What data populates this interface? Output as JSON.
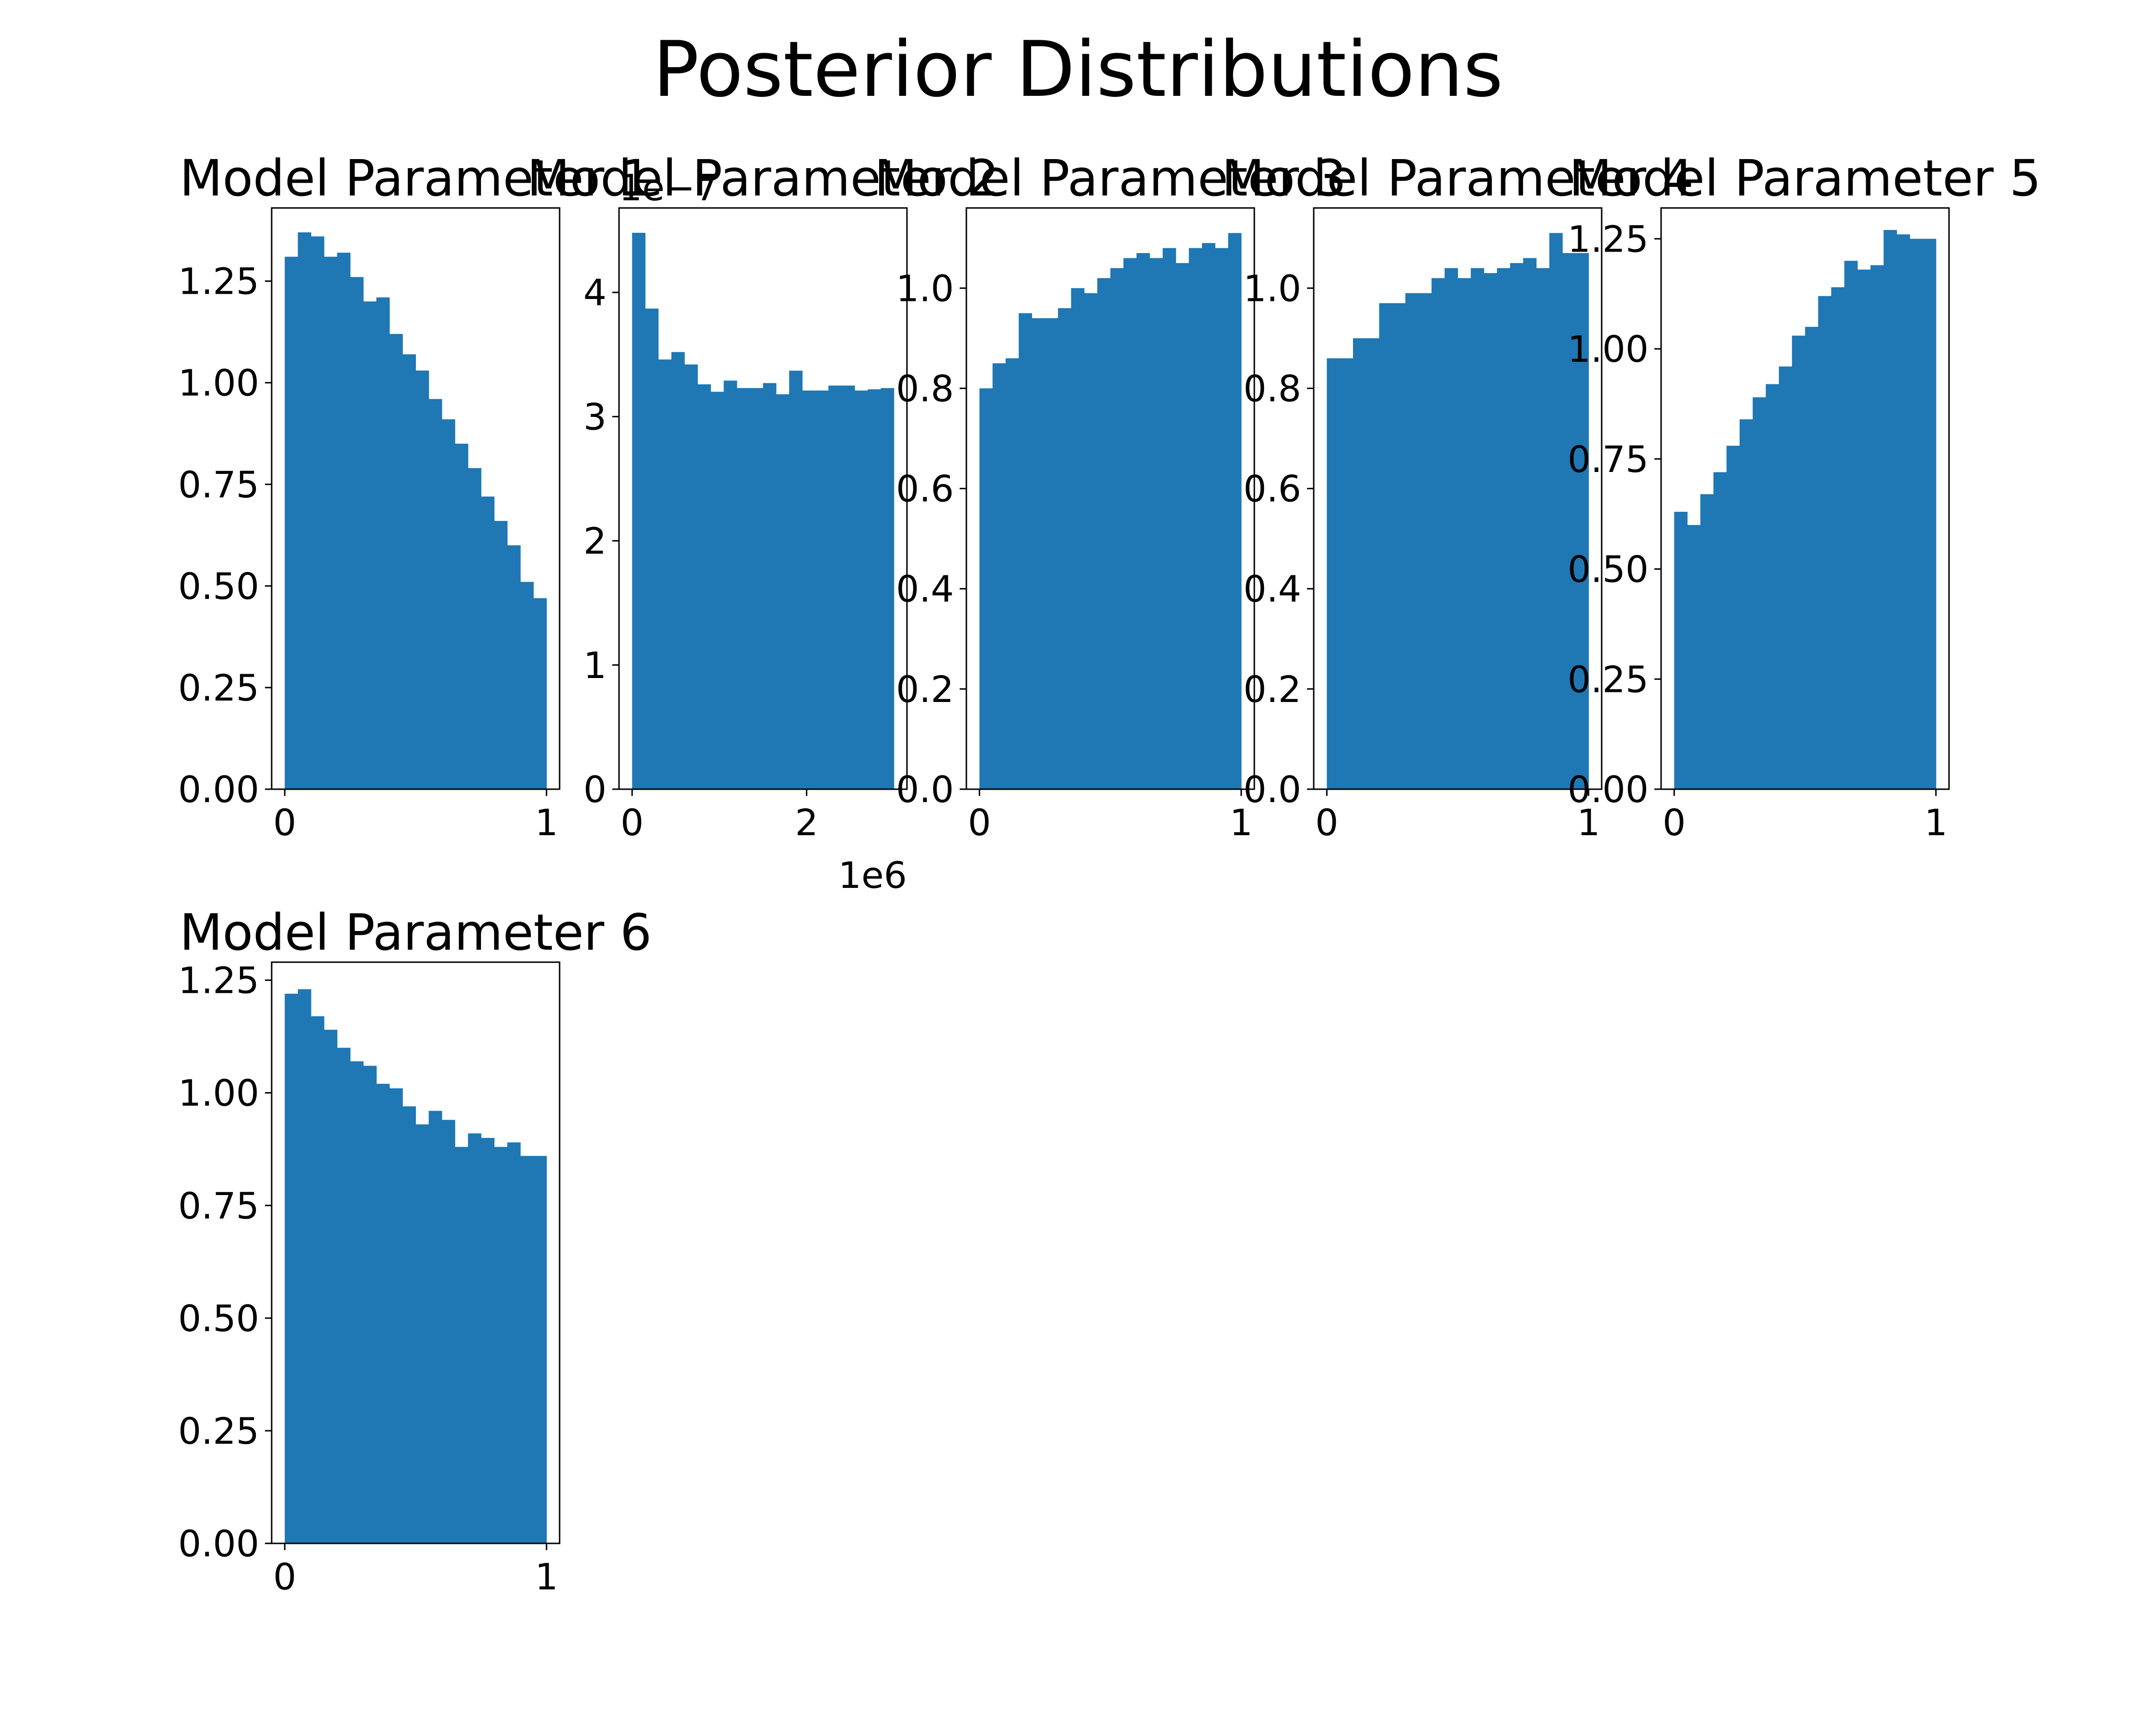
{
  "figure": {
    "title": "Posterior Distributions"
  },
  "chart_data": [
    {
      "type": "histogram",
      "title": "Model Parameter 1",
      "xlim": [
        -0.05,
        1.05
      ],
      "ylim": [
        0,
        1.43
      ],
      "xticks": [
        0,
        1
      ],
      "xtick_labels": [
        "0",
        "1"
      ],
      "yticks": [
        0,
        0.25,
        0.5,
        0.75,
        1.0,
        1.25
      ],
      "ytick_labels": [
        "0.00",
        "0.25",
        "0.50",
        "0.75",
        "1.00",
        "1.25"
      ],
      "bin_range": [
        0,
        1
      ],
      "values": [
        1.31,
        1.37,
        1.36,
        1.31,
        1.32,
        1.26,
        1.2,
        1.21,
        1.12,
        1.07,
        1.03,
        0.96,
        0.91,
        0.85,
        0.79,
        0.72,
        0.66,
        0.6,
        0.51,
        0.47
      ]
    },
    {
      "type": "histogram",
      "title": "Model Parameter 2",
      "xlim": [
        -0.15,
        3.15
      ],
      "ylim": [
        0,
        4.68
      ],
      "xticks": [
        0,
        2
      ],
      "xtick_labels": [
        "0",
        "2"
      ],
      "x_offset_label": "1e6",
      "yticks": [
        0,
        1,
        2,
        3,
        4
      ],
      "ytick_labels": [
        "0",
        "1",
        "2",
        "3",
        "4"
      ],
      "y_offset_label": "1e−7",
      "bin_range": [
        0,
        3
      ],
      "values": [
        4.48,
        3.87,
        3.46,
        3.52,
        3.42,
        3.26,
        3.2,
        3.29,
        3.23,
        3.23,
        3.27,
        3.18,
        3.37,
        3.21,
        3.21,
        3.25,
        3.25,
        3.21,
        3.22,
        3.23
      ]
    },
    {
      "type": "histogram",
      "title": "Model Parameter 3",
      "xlim": [
        -0.05,
        1.05
      ],
      "ylim": [
        0,
        1.16
      ],
      "xticks": [
        0,
        1
      ],
      "xtick_labels": [
        "0",
        "1"
      ],
      "yticks": [
        0,
        0.2,
        0.4,
        0.6,
        0.8,
        1.0
      ],
      "ytick_labels": [
        "0.0",
        "0.2",
        "0.4",
        "0.6",
        "0.8",
        "1.0"
      ],
      "bin_range": [
        0,
        1
      ],
      "values": [
        0.8,
        0.85,
        0.86,
        0.95,
        0.94,
        0.94,
        0.96,
        1.0,
        0.99,
        1.02,
        1.04,
        1.06,
        1.07,
        1.06,
        1.08,
        1.05,
        1.08,
        1.09,
        1.08,
        1.11
      ]
    },
    {
      "type": "histogram",
      "title": "Model Parameter 4",
      "xlim": [
        -0.05,
        1.05
      ],
      "ylim": [
        0,
        1.16
      ],
      "xticks": [
        0,
        1
      ],
      "xtick_labels": [
        "0",
        "1"
      ],
      "yticks": [
        0,
        0.2,
        0.4,
        0.6,
        0.8,
        1.0
      ],
      "ytick_labels": [
        "0.0",
        "0.2",
        "0.4",
        "0.6",
        "0.8",
        "1.0"
      ],
      "bin_range": [
        0,
        1
      ],
      "values": [
        0.86,
        0.86,
        0.9,
        0.9,
        0.97,
        0.97,
        0.99,
        0.99,
        1.02,
        1.04,
        1.02,
        1.04,
        1.03,
        1.04,
        1.05,
        1.06,
        1.04,
        1.11,
        1.07,
        1.07
      ]
    },
    {
      "type": "histogram",
      "title": "Model Parameter 5",
      "xlim": [
        -0.05,
        1.05
      ],
      "ylim": [
        0,
        1.32
      ],
      "xticks": [
        0,
        1
      ],
      "xtick_labels": [
        "0",
        "1"
      ],
      "yticks": [
        0,
        0.25,
        0.5,
        0.75,
        1.0,
        1.25
      ],
      "ytick_labels": [
        "0.00",
        "0.25",
        "0.50",
        "0.75",
        "1.00",
        "1.25"
      ],
      "bin_range": [
        0,
        1
      ],
      "values": [
        0.63,
        0.6,
        0.67,
        0.72,
        0.78,
        0.84,
        0.89,
        0.92,
        0.96,
        1.03,
        1.05,
        1.12,
        1.14,
        1.2,
        1.18,
        1.19,
        1.27,
        1.26,
        1.25,
        1.25
      ]
    },
    {
      "type": "histogram",
      "title": "Model Parameter 6",
      "xlim": [
        -0.05,
        1.05
      ],
      "ylim": [
        0,
        1.29
      ],
      "xticks": [
        0,
        1
      ],
      "xtick_labels": [
        "0",
        "1"
      ],
      "yticks": [
        0,
        0.25,
        0.5,
        0.75,
        1.0,
        1.25
      ],
      "ytick_labels": [
        "0.00",
        "0.25",
        "0.50",
        "0.75",
        "1.00",
        "1.25"
      ],
      "bin_range": [
        0,
        1
      ],
      "values": [
        1.22,
        1.23,
        1.17,
        1.14,
        1.1,
        1.07,
        1.06,
        1.02,
        1.01,
        0.97,
        0.93,
        0.96,
        0.94,
        0.88,
        0.91,
        0.9,
        0.88,
        0.89,
        0.86,
        0.86
      ]
    }
  ]
}
